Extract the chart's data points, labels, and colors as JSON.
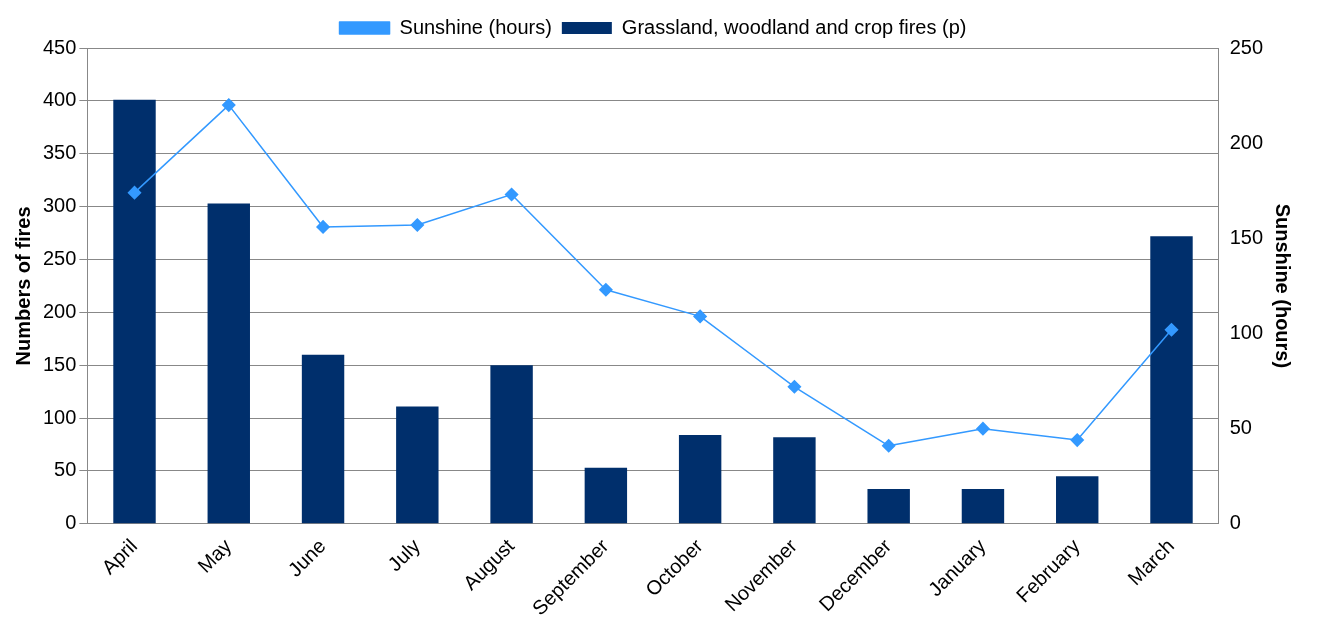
{
  "chart_data": {
    "type": "bar",
    "ylabel": "Numbers of fires",
    "y2label": "Sunshine (hours)",
    "categories": [
      "April",
      "May",
      "June",
      "July",
      "August",
      "September",
      "October",
      "November",
      "December",
      "January",
      "February",
      "March"
    ],
    "series": [
      {
        "name": "Grassland, woodland and crop fires (p)",
        "color": "#002f6c",
        "values": [
          401,
          303,
          160,
          111,
          150,
          53,
          84,
          82,
          33,
          33,
          45,
          272
        ]
      },
      {
        "name": "Sunshine (hours)",
        "type": "line",
        "axis": "y2",
        "color": "#3399ff",
        "marker": "diamond",
        "values": [
          174,
          220,
          156,
          157,
          173,
          123,
          109,
          72,
          41,
          50,
          44,
          102
        ]
      }
    ],
    "ylim": [
      0,
      450
    ],
    "yticks": [
      0,
      50,
      100,
      150,
      200,
      250,
      300,
      350,
      400,
      450
    ],
    "y2lim": [
      0,
      250
    ],
    "y2ticks": [
      0,
      50,
      100,
      150,
      200,
      250
    ],
    "grid": "y",
    "legend": "top"
  }
}
